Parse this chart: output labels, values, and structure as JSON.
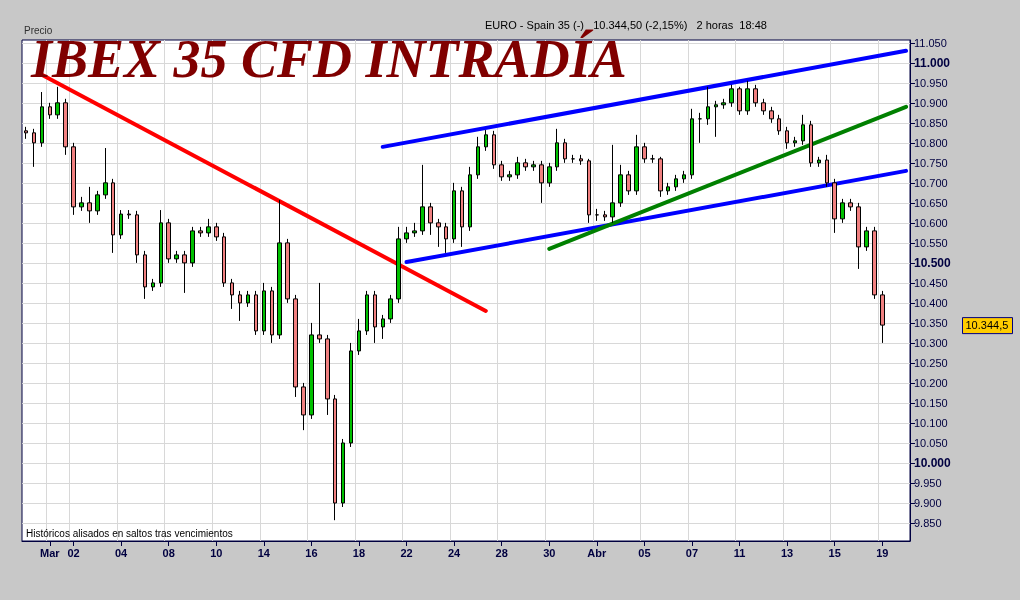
{
  "chart_data": {
    "type": "candlestick",
    "title": "IBEX 35 CFD INTRADÍA",
    "subtitle": "EURO - Spain 35 (-)   10.344,50 (-2,15%)   2 horas  18:48",
    "ylabel": "Precio",
    "annotations": [
      "Históricos alisados en saltos tras vencimientos",
      "10.344,5"
    ],
    "categories": [
      null,
      null,
      null,
      "Mar",
      null,
      null,
      "02",
      null,
      null,
      null,
      null,
      null,
      "04",
      null,
      null,
      null,
      null,
      null,
      "08",
      null,
      null,
      null,
      null,
      null,
      "10",
      null,
      null,
      null,
      null,
      null,
      "14",
      null,
      null,
      null,
      null,
      null,
      "16",
      null,
      null,
      null,
      null,
      null,
      "18",
      null,
      null,
      null,
      null,
      null,
      "22",
      null,
      null,
      null,
      null,
      null,
      "24",
      null,
      null,
      null,
      null,
      null,
      "28",
      null,
      null,
      null,
      null,
      null,
      "30",
      null,
      null,
      null,
      null,
      null,
      "Abr",
      null,
      null,
      null,
      null,
      null,
      "05",
      null,
      null,
      null,
      null,
      null,
      "07",
      null,
      null,
      null,
      null,
      null,
      "11",
      null,
      null,
      null,
      null,
      null,
      "13",
      null,
      null,
      null,
      null,
      null,
      "15",
      null,
      null,
      null,
      null,
      null,
      "19",
      null,
      null,
      null
    ],
    "ohlc": [
      [
        10830,
        10840,
        10810,
        10825
      ],
      [
        10825,
        10835,
        10740,
        10800
      ],
      [
        10800,
        10927,
        10790,
        10890
      ],
      [
        10890,
        10900,
        10860,
        10870
      ],
      [
        10870,
        10940,
        10860,
        10900
      ],
      [
        10900,
        10910,
        10770,
        10790
      ],
      [
        10790,
        10800,
        10620,
        10640
      ],
      [
        10640,
        10665,
        10630,
        10650
      ],
      [
        10650,
        10690,
        10600,
        10630
      ],
      [
        10630,
        10680,
        10620,
        10670
      ],
      [
        10670,
        10787,
        10660,
        10700
      ],
      [
        10700,
        10710,
        10525,
        10570
      ],
      [
        10570,
        10632,
        10560,
        10622
      ],
      [
        10622,
        10632,
        10610,
        10620
      ],
      [
        10620,
        10630,
        10500,
        10520
      ],
      [
        10520,
        10530,
        10410,
        10440
      ],
      [
        10440,
        10460,
        10430,
        10450
      ],
      [
        10450,
        10632,
        10440,
        10600
      ],
      [
        10600,
        10610,
        10500,
        10510
      ],
      [
        10510,
        10530,
        10500,
        10520
      ],
      [
        10520,
        10530,
        10425,
        10500
      ],
      [
        10500,
        10590,
        10490,
        10580
      ],
      [
        10580,
        10590,
        10565,
        10575
      ],
      [
        10575,
        10610,
        10565,
        10590
      ],
      [
        10590,
        10600,
        10555,
        10565
      ],
      [
        10565,
        10575,
        10440,
        10450
      ],
      [
        10450,
        10460,
        10385,
        10420
      ],
      [
        10420,
        10430,
        10355,
        10400
      ],
      [
        10400,
        10430,
        10390,
        10420
      ],
      [
        10420,
        10430,
        10320,
        10330
      ],
      [
        10330,
        10450,
        10320,
        10430
      ],
      [
        10430,
        10440,
        10300,
        10320
      ],
      [
        10320,
        10657,
        10310,
        10550
      ],
      [
        10550,
        10560,
        10400,
        10410
      ],
      [
        10410,
        10420,
        10165,
        10190
      ],
      [
        10190,
        10200,
        10082,
        10120
      ],
      [
        10120,
        10350,
        10110,
        10320
      ],
      [
        10320,
        10450,
        10300,
        10310
      ],
      [
        10310,
        10320,
        10120,
        10160
      ],
      [
        10160,
        10170,
        9857,
        9900
      ],
      [
        9900,
        10060,
        9890,
        10050
      ],
      [
        10050,
        10300,
        10040,
        10280
      ],
      [
        10280,
        10360,
        10270,
        10330
      ],
      [
        10330,
        10430,
        10320,
        10420
      ],
      [
        10420,
        10430,
        10300,
        10340
      ],
      [
        10340,
        10370,
        10310,
        10360
      ],
      [
        10360,
        10420,
        10350,
        10410
      ],
      [
        10410,
        10590,
        10400,
        10560
      ],
      [
        10560,
        10590,
        10550,
        10575
      ],
      [
        10575,
        10600,
        10565,
        10580
      ],
      [
        10580,
        10745,
        10570,
        10640
      ],
      [
        10640,
        10650,
        10570,
        10600
      ],
      [
        10600,
        10610,
        10540,
        10590
      ],
      [
        10590,
        10600,
        10525,
        10560
      ],
      [
        10560,
        10700,
        10550,
        10680
      ],
      [
        10680,
        10690,
        10540,
        10590
      ],
      [
        10590,
        10740,
        10580,
        10720
      ],
      [
        10720,
        10815,
        10710,
        10790
      ],
      [
        10790,
        10832,
        10780,
        10820
      ],
      [
        10820,
        10830,
        10735,
        10745
      ],
      [
        10745,
        10755,
        10705,
        10715
      ],
      [
        10715,
        10730,
        10705,
        10720
      ],
      [
        10720,
        10765,
        10710,
        10750
      ],
      [
        10750,
        10760,
        10730,
        10740
      ],
      [
        10740,
        10755,
        10730,
        10745
      ],
      [
        10745,
        10755,
        10650,
        10700
      ],
      [
        10700,
        10750,
        10690,
        10740
      ],
      [
        10740,
        10835,
        10730,
        10800
      ],
      [
        10800,
        10810,
        10750,
        10760
      ],
      [
        10760,
        10770,
        10750,
        10760
      ],
      [
        10760,
        10770,
        10745,
        10755
      ],
      [
        10755,
        10760,
        10600,
        10620
      ],
      [
        10620,
        10635,
        10605,
        10620
      ],
      [
        10620,
        10630,
        10605,
        10615
      ],
      [
        10615,
        10795,
        10600,
        10650
      ],
      [
        10650,
        10745,
        10640,
        10720
      ],
      [
        10720,
        10730,
        10670,
        10680
      ],
      [
        10680,
        10820,
        10670,
        10790
      ],
      [
        10790,
        10800,
        10750,
        10760
      ],
      [
        10760,
        10770,
        10750,
        10760
      ],
      [
        10760,
        10765,
        10665,
        10680
      ],
      [
        10680,
        10700,
        10670,
        10690
      ],
      [
        10690,
        10720,
        10680,
        10710
      ],
      [
        10710,
        10730,
        10700,
        10720
      ],
      [
        10720,
        10885,
        10710,
        10860
      ],
      [
        10860,
        10875,
        10800,
        10860
      ],
      [
        10860,
        10940,
        10845,
        10890
      ],
      [
        10890,
        10905,
        10815,
        10895
      ],
      [
        10895,
        10910,
        10885,
        10900
      ],
      [
        10900,
        10945,
        10890,
        10935
      ],
      [
        10935,
        10940,
        10870,
        10880
      ],
      [
        10880,
        10955,
        10870,
        10935
      ],
      [
        10935,
        10945,
        10890,
        10900
      ],
      [
        10900,
        10910,
        10870,
        10880
      ],
      [
        10880,
        10890,
        10850,
        10860
      ],
      [
        10860,
        10870,
        10820,
        10830
      ],
      [
        10830,
        10840,
        10785,
        10800
      ],
      [
        10800,
        10815,
        10790,
        10805
      ],
      [
        10805,
        10870,
        10795,
        10845
      ],
      [
        10845,
        10855,
        10740,
        10750
      ],
      [
        10750,
        10765,
        10740,
        10757
      ],
      [
        10757,
        10770,
        10690,
        10700
      ],
      [
        10700,
        10710,
        10575,
        10610
      ],
      [
        10610,
        10660,
        10600,
        10650
      ],
      [
        10650,
        10660,
        10630,
        10640
      ],
      [
        10640,
        10650,
        10485,
        10540
      ],
      [
        10540,
        10590,
        10530,
        10580
      ],
      [
        10580,
        10590,
        10410,
        10420
      ],
      [
        10420,
        10430,
        10300,
        10344.5
      ],
      null,
      null,
      null
    ],
    "series": [
      {
        "type": "line",
        "color": "#ff0000",
        "values": [
          null,
          null,
          10970,
          null,
          null,
          null,
          null,
          null,
          null,
          null,
          null,
          null,
          null,
          null,
          null,
          null,
          null,
          null,
          null,
          null,
          null,
          null,
          null,
          null,
          null,
          null,
          null,
          null,
          null,
          null,
          null,
          null,
          null,
          null,
          null,
          null,
          null,
          null,
          null,
          null,
          null,
          null,
          null,
          null,
          null,
          null,
          null,
          null,
          null,
          null,
          null,
          null,
          null,
          null,
          null,
          null,
          null,
          null,
          10380,
          null,
          null,
          null,
          null,
          null,
          null,
          null,
          null,
          null,
          null,
          null,
          null,
          null,
          null,
          null,
          null,
          null,
          null,
          null,
          null,
          null,
          null,
          null,
          null,
          null,
          null,
          null,
          null,
          null,
          null,
          null,
          null,
          null,
          null,
          null,
          null,
          null,
          null,
          null,
          null,
          null,
          null,
          null,
          null,
          null,
          null,
          null,
          null,
          null,
          null,
          null,
          null,
          null
        ]
      },
      {
        "type": "line",
        "color": "#0000ff",
        "values": [
          null,
          null,
          null,
          null,
          null,
          null,
          null,
          null,
          null,
          null,
          null,
          null,
          null,
          null,
          null,
          null,
          null,
          null,
          null,
          null,
          null,
          null,
          null,
          null,
          null,
          null,
          null,
          null,
          null,
          null,
          null,
          null,
          null,
          null,
          null,
          null,
          null,
          null,
          null,
          null,
          null,
          null,
          null,
          null,
          null,
          10790,
          null,
          null,
          null,
          null,
          null,
          null,
          null,
          null,
          null,
          null,
          null,
          null,
          null,
          null,
          null,
          null,
          null,
          null,
          null,
          null,
          null,
          null,
          null,
          null,
          null,
          null,
          null,
          null,
          null,
          null,
          null,
          null,
          null,
          null,
          null,
          null,
          null,
          null,
          null,
          null,
          null,
          null,
          null,
          null,
          null,
          null,
          null,
          null,
          null,
          null,
          null,
          null,
          null,
          null,
          null,
          null,
          null,
          null,
          null,
          null,
          null,
          null,
          null,
          null,
          null,
          11030
        ]
      },
      {
        "type": "line",
        "color": "#0000ff",
        "values": [
          null,
          null,
          null,
          null,
          null,
          null,
          null,
          null,
          null,
          null,
          null,
          null,
          null,
          null,
          null,
          null,
          null,
          null,
          null,
          null,
          null,
          null,
          null,
          null,
          null,
          null,
          null,
          null,
          null,
          null,
          null,
          null,
          null,
          null,
          null,
          null,
          null,
          null,
          null,
          null,
          null,
          null,
          null,
          null,
          null,
          null,
          null,
          null,
          10502,
          null,
          null,
          null,
          null,
          null,
          null,
          null,
          null,
          null,
          null,
          null,
          null,
          null,
          null,
          null,
          null,
          null,
          null,
          null,
          null,
          null,
          null,
          null,
          null,
          null,
          null,
          null,
          null,
          null,
          null,
          null,
          null,
          null,
          null,
          null,
          null,
          null,
          null,
          null,
          null,
          null,
          null,
          null,
          null,
          null,
          null,
          null,
          null,
          null,
          null,
          null,
          null,
          null,
          null,
          null,
          null,
          null,
          null,
          null,
          null,
          null,
          null,
          10730
        ]
      },
      {
        "type": "line",
        "color": "#008000",
        "values": [
          null,
          null,
          null,
          null,
          null,
          null,
          null,
          null,
          null,
          null,
          null,
          null,
          null,
          null,
          null,
          null,
          null,
          null,
          null,
          null,
          null,
          null,
          null,
          null,
          null,
          null,
          null,
          null,
          null,
          null,
          null,
          null,
          null,
          null,
          null,
          null,
          null,
          null,
          null,
          null,
          null,
          null,
          null,
          null,
          null,
          null,
          null,
          null,
          null,
          null,
          null,
          null,
          null,
          null,
          null,
          null,
          null,
          null,
          null,
          null,
          null,
          null,
          null,
          null,
          null,
          null,
          10535,
          null,
          null,
          null,
          null,
          null,
          null,
          null,
          null,
          null,
          null,
          null,
          null,
          null,
          null,
          null,
          null,
          null,
          null,
          null,
          null,
          null,
          null,
          null,
          null,
          null,
          null,
          null,
          null,
          null,
          null,
          null,
          null,
          null,
          null,
          null,
          null,
          null,
          null,
          null,
          null,
          null,
          null,
          null,
          null,
          10890
        ]
      }
    ],
    "marker": "none",
    "ylim": [
      9805,
      11057
    ],
    "yticks": [
      {
        "value": 9850,
        "label": "9.850"
      },
      {
        "value": 9900,
        "label": "9.900"
      },
      {
        "value": 9950,
        "label": "9.950"
      },
      {
        "value": 10000,
        "label": "10.000"
      },
      {
        "value": 10050,
        "label": "10.050"
      },
      {
        "value": 10100,
        "label": "10.100"
      },
      {
        "value": 10150,
        "label": "10.150"
      },
      {
        "value": 10200,
        "label": "10.200"
      },
      {
        "value": 10250,
        "label": "10.250"
      },
      {
        "value": 10300,
        "label": "10.300"
      },
      {
        "value": 10350,
        "label": "10.350"
      },
      {
        "value": 10400,
        "label": "10.400"
      },
      {
        "value": 10450,
        "label": "10.450"
      },
      {
        "value": 10500,
        "label": "10.500"
      },
      {
        "value": 10550,
        "label": "10.550"
      },
      {
        "value": 10600,
        "label": "10.600"
      },
      {
        "value": 10650,
        "label": "10.650"
      },
      {
        "value": 10700,
        "label": "10.700"
      },
      {
        "value": 10750,
        "label": "10.750"
      },
      {
        "value": 10800,
        "label": "10.800"
      },
      {
        "value": 10850,
        "label": "10.850"
      },
      {
        "value": 10900,
        "label": "10.900"
      },
      {
        "value": 10950,
        "label": "10.950"
      },
      {
        "value": 11000,
        "label": "11.000"
      },
      {
        "value": 11050,
        "label": "11.050"
      }
    ],
    "grid": true
  }
}
